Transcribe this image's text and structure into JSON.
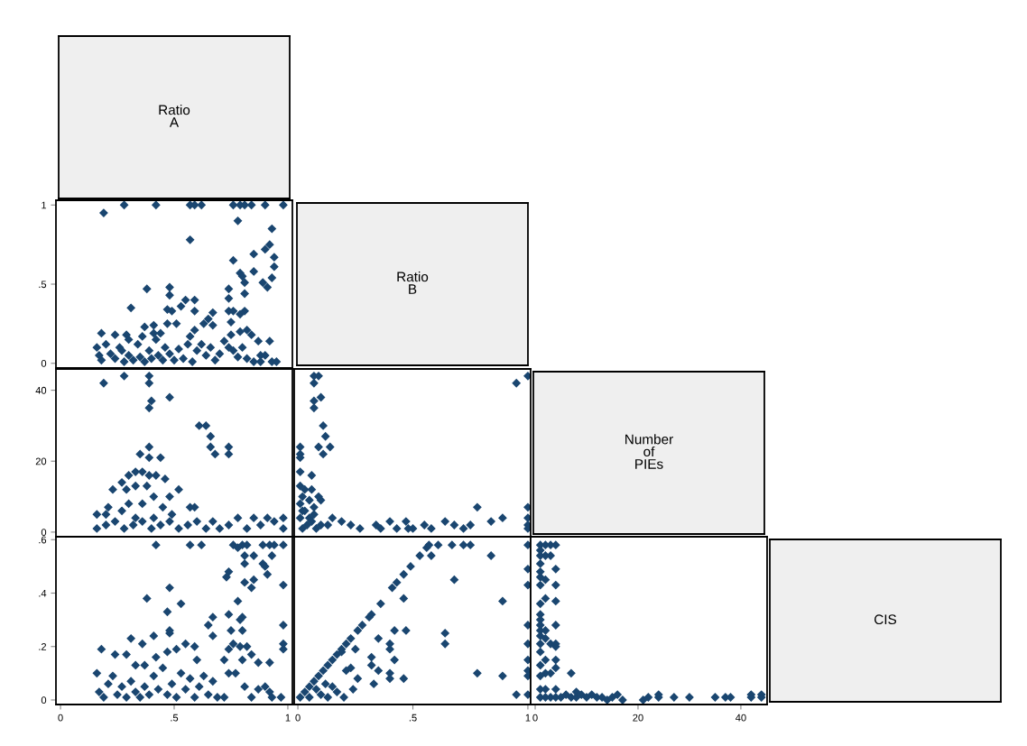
{
  "chart_data": [
    {
      "type": "other",
      "title": "Ratio\nA"
    },
    {
      "type": "scatter",
      "marker": "diamond",
      "tick_labels": "y",
      "xlim": [
        -0.02,
        1.02
      ],
      "ylim": [
        -0.03,
        1.03
      ],
      "yticks": [
        0,
        {
          "value": 0.5,
          "label": ".5"
        },
        1
      ],
      "series": [
        {
          "color": "#1a4670",
          "x": [
            0.19,
            0.28,
            0.42,
            0.57,
            0.59,
            0.62,
            0.76,
            0.79,
            0.81,
            0.84,
            0.9,
            0.98,
            0.78,
            0.57,
            0.93,
            0.92,
            0.9,
            0.85,
            0.94,
            0.94,
            0.76,
            0.79,
            0.8,
            0.81,
            0.85,
            0.93,
            0.89,
            0.91,
            0.81,
            0.74,
            0.74,
            0.38,
            0.48,
            0.48,
            0.31,
            0.47,
            0.49,
            0.53,
            0.55,
            0.59,
            0.59,
            0.74,
            0.76,
            0.81,
            0.79,
            0.67,
            0.65,
            0.63,
            0.75,
            0.51,
            0.37,
            0.41,
            0.47,
            0.59,
            0.67,
            0.82,
            0.84,
            0.79,
            0.75,
            0.18,
            0.24,
            0.29,
            0.57,
            0.87,
            0.92,
            0.16,
            0.17,
            0.18,
            0.2,
            0.22,
            0.24,
            0.26,
            0.28,
            0.3,
            0.32,
            0.34,
            0.35,
            0.37,
            0.39,
            0.4,
            0.42,
            0.43,
            0.45,
            0.46,
            0.48,
            0.5,
            0.52,
            0.54,
            0.56,
            0.58,
            0.6,
            0.62,
            0.64,
            0.66,
            0.68,
            0.7,
            0.72,
            0.74,
            0.76,
            0.78,
            0.8,
            0.82,
            0.85,
            0.88,
            0.9,
            0.93,
            0.95,
            0.88,
            0.3,
            0.27,
            0.44,
            0.41,
            0.36
          ],
          "values": [
            0.95,
            1,
            1,
            1,
            1,
            1,
            1,
            1,
            1,
            1,
            1,
            1,
            0.9,
            0.78,
            0.85,
            0.75,
            0.72,
            0.69,
            0.67,
            0.61,
            0.65,
            0.57,
            0.55,
            0.51,
            0.58,
            0.54,
            0.51,
            0.48,
            0.44,
            0.47,
            0.41,
            0.47,
            0.48,
            0.43,
            0.35,
            0.34,
            0.33,
            0.36,
            0.4,
            0.4,
            0.33,
            0.33,
            0.33,
            0.33,
            0.31,
            0.32,
            0.28,
            0.25,
            0.26,
            0.25,
            0.23,
            0.24,
            0.25,
            0.21,
            0.24,
            0.21,
            0.18,
            0.2,
            0.18,
            0.19,
            0.18,
            0.18,
            0.17,
            0.14,
            0.14,
            0.1,
            0.05,
            0.02,
            0.12,
            0.06,
            0.03,
            0.1,
            0.01,
            0.05,
            0.02,
            0.12,
            0.04,
            0.01,
            0.08,
            0.03,
            0.15,
            0.05,
            0.02,
            0.1,
            0.06,
            0.02,
            0.09,
            0.03,
            0.12,
            0.01,
            0.08,
            0.12,
            0.05,
            0.1,
            0.02,
            0.06,
            0.14,
            0.1,
            0.08,
            0.04,
            0.1,
            0.03,
            0.01,
            0.05,
            0.05,
            0.01,
            0.01,
            0.01,
            0.15,
            0.08,
            0.19,
            0.19,
            0.17
          ]
        }
      ]
    },
    {
      "type": "other",
      "title": "Ratio\nB"
    },
    {
      "type": "scatter",
      "marker": "diamond",
      "tick_labels": "y",
      "xlim": [
        -0.02,
        1.02
      ],
      "ylim": [
        -1.3,
        46
      ],
      "yticks": [
        0,
        20,
        40
      ],
      "series": [
        {
          "color": "#1a4670",
          "x": [
            0.19,
            0.28,
            0.39,
            0.39,
            0.4,
            0.39,
            0.48,
            0.61,
            0.64,
            0.66,
            0.66,
            0.68,
            0.74,
            0.74,
            0.35,
            0.39,
            0.39,
            0.44,
            0.33,
            0.36,
            0.39,
            0.3,
            0.27,
            0.23,
            0.29,
            0.33,
            0.38,
            0.42,
            0.46,
            0.52,
            0.41,
            0.48,
            0.3,
            0.36,
            0.21,
            0.45,
            0.57,
            0.59,
            0.49,
            0.27,
            0.16,
            0.2,
            0.41,
            0.33,
            0.16,
            0.2,
            0.24,
            0.28,
            0.32,
            0.36,
            0.4,
            0.44,
            0.48,
            0.52,
            0.56,
            0.6,
            0.64,
            0.67,
            0.7,
            0.74,
            0.78,
            0.82,
            0.85,
            0.88,
            0.91,
            0.94,
            0.98,
            0.98
          ],
          "values": [
            42,
            44,
            44,
            42,
            37,
            35,
            38,
            30,
            30,
            27,
            24,
            22,
            24,
            22,
            22,
            24,
            21,
            21,
            17,
            17,
            16,
            16,
            14,
            12,
            12,
            13,
            13,
            16,
            15,
            12,
            10,
            10,
            8,
            8,
            7,
            7,
            7,
            7,
            5,
            6,
            5,
            5,
            4,
            4,
            1,
            2,
            3,
            1,
            2,
            3,
            1,
            2,
            3,
            1,
            2,
            3,
            1,
            3,
            1,
            2,
            4,
            1,
            4,
            2,
            4,
            3,
            4,
            1
          ]
        }
      ]
    },
    {
      "type": "scatter",
      "marker": "diamond",
      "tick_labels": false,
      "xlim": [
        -0.016,
        1.012
      ],
      "ylim": [
        -1.3,
        46
      ],
      "series": [
        {
          "color": "#1a4670",
          "x": [
            0.07,
            0.09,
            0.07,
            0.07,
            0.07,
            0.1,
            0.11,
            0.12,
            0.09,
            0.14,
            0.11,
            0.01,
            0.01,
            0.01,
            0.95,
            1.0,
            0.01,
            0.06,
            0.01,
            0.03,
            0.06,
            0.09,
            0.1,
            0.01,
            0.02,
            0.01,
            0.05,
            0.07,
            0.78,
            1.0,
            1.0,
            1.0,
            1.0,
            0.89,
            0.84,
            0.75,
            0.72,
            0.68,
            0.64,
            0.58,
            0.55,
            0.5,
            0.48,
            0.47,
            0.43,
            0.4,
            0.36,
            0.34,
            0.27,
            0.23,
            0.19,
            0.15,
            0.13,
            0.02,
            0.04,
            0.06,
            0.08,
            0.1,
            0.03,
            0.05,
            0.02,
            0.07
          ],
          "values": [
            44,
            44,
            42,
            37,
            35,
            38,
            30,
            27,
            24,
            24,
            22,
            24,
            22,
            21,
            42,
            44,
            17,
            16,
            13,
            12,
            12,
            10,
            9,
            8,
            6,
            4,
            4,
            5,
            7,
            7,
            4,
            2,
            1,
            4,
            3,
            2,
            1,
            2,
            3,
            1,
            2,
            1,
            1,
            3,
            1,
            3,
            1,
            2,
            1,
            2,
            3,
            4,
            2,
            1,
            2,
            3,
            1,
            2,
            6,
            9,
            10,
            7
          ]
        }
      ]
    },
    {
      "type": "other",
      "title": "Number\nof\nPIEs"
    },
    {
      "type": "scatter",
      "marker": "diamond",
      "xlim": [
        -0.02,
        1.02
      ],
      "ylim": [
        -0.017,
        0.611
      ],
      "xticks": [
        0,
        {
          "value": 0.5,
          "label": ".5"
        },
        1
      ],
      "yticks": [
        0,
        {
          "value": 0.2,
          "label": ".2"
        },
        {
          "value": 0.4,
          "label": ".4"
        },
        {
          "value": 0.6,
          "label": ".6"
        }
      ],
      "series": [
        {
          "color": "#1a4670",
          "x": [
            0.42,
            0.57,
            0.62,
            0.76,
            0.78,
            0.8,
            0.82,
            0.89,
            0.92,
            0.94,
            0.98,
            0.81,
            0.85,
            0.93,
            0.81,
            0.89,
            0.9,
            0.91,
            0.74,
            0.73,
            0.81,
            0.85,
            0.84,
            0.98,
            0.48,
            0.38,
            0.53,
            0.78,
            0.47,
            0.67,
            0.74,
            0.8,
            0.79,
            0.65,
            0.98,
            0.75,
            0.8,
            0.48,
            0.48,
            0.67,
            0.41,
            0.31,
            0.36,
            0.55,
            0.59,
            0.51,
            0.98,
            0.98,
            0.18,
            0.76,
            0.82,
            0.79,
            0.74,
            0.47,
            0.29,
            0.24,
            0.42,
            0.8,
            0.84,
            0.87,
            0.92,
            0.72,
            0.6,
            0.33,
            0.37,
            0.81,
            0.84,
            0.87,
            0.93,
            0.97,
            0.16,
            0.17,
            0.19,
            0.21,
            0.23,
            0.25,
            0.27,
            0.29,
            0.31,
            0.33,
            0.35,
            0.37,
            0.39,
            0.41,
            0.43,
            0.45,
            0.47,
            0.49,
            0.51,
            0.53,
            0.55,
            0.57,
            0.59,
            0.61,
            0.63,
            0.65,
            0.67,
            0.69,
            0.72,
            0.74,
            0.77,
            0.9,
            0.92
          ],
          "values": [
            0.58,
            0.58,
            0.58,
            0.58,
            0.57,
            0.58,
            0.58,
            0.58,
            0.58,
            0.58,
            0.58,
            0.54,
            0.54,
            0.54,
            0.51,
            0.51,
            0.5,
            0.47,
            0.48,
            0.46,
            0.44,
            0.45,
            0.42,
            0.43,
            0.42,
            0.38,
            0.36,
            0.37,
            0.33,
            0.31,
            0.32,
            0.31,
            0.3,
            0.28,
            0.28,
            0.26,
            0.26,
            0.26,
            0.25,
            0.24,
            0.24,
            0.23,
            0.21,
            0.21,
            0.2,
            0.19,
            0.21,
            0.19,
            0.19,
            0.21,
            0.2,
            0.2,
            0.19,
            0.18,
            0.17,
            0.17,
            0.16,
            0.15,
            0.17,
            0.14,
            0.14,
            0.15,
            0.15,
            0.13,
            0.13,
            0.05,
            0.01,
            0.04,
            0.01,
            0.01,
            0.1,
            0.03,
            0.01,
            0.06,
            0.09,
            0.02,
            0.05,
            0.01,
            0.07,
            0.03,
            0.01,
            0.05,
            0.02,
            0.09,
            0.04,
            0.12,
            0.02,
            0.06,
            0.01,
            0.1,
            0.04,
            0.08,
            0.01,
            0.05,
            0.09,
            0.02,
            0.07,
            0.01,
            0.01,
            0.1,
            0.1,
            0.05,
            0.03
          ]
        }
      ]
    },
    {
      "type": "scatter",
      "marker": "diamond",
      "tick_labels": "x",
      "xlim": [
        -0.016,
        1.012
      ],
      "ylim": [
        -0.017,
        0.611
      ],
      "xticks": [
        0,
        {
          "value": 0.5,
          "label": ".5"
        },
        1
      ],
      "series": [
        {
          "color": "#1a4670",
          "x": [
            0.01,
            0.03,
            0.05,
            0.07,
            0.09,
            0.11,
            0.13,
            0.15,
            0.17,
            0.19,
            0.21,
            0.23,
            0.26,
            0.28,
            0.31,
            0.32,
            0.36,
            0.41,
            0.43,
            0.46,
            0.49,
            0.53,
            0.56,
            0.57,
            0.61,
            0.67,
            0.72,
            0.75,
            1.0,
            0.58,
            0.84,
            0.68,
            0.89,
            0.46,
            1.0,
            1.0,
            1.0,
            1.0,
            1.0,
            1.0,
            1.0,
            1.0,
            0.95,
            0.78,
            0.89,
            0.64,
            0.64,
            0.47,
            0.42,
            0.35,
            0.4,
            0.4,
            0.42,
            0.32,
            0.32,
            0.35,
            0.33,
            0.4,
            0.4,
            0.46,
            0.25,
            0.19,
            0.23,
            0.26,
            0.21,
            0.24,
            0.2,
            0.05,
            0.1,
            0.13,
            0.08,
            0.12,
            0.15,
            0.17
          ],
          "values": [
            0.01,
            0.03,
            0.05,
            0.07,
            0.09,
            0.11,
            0.13,
            0.15,
            0.17,
            0.19,
            0.21,
            0.23,
            0.26,
            0.28,
            0.31,
            0.32,
            0.36,
            0.42,
            0.44,
            0.47,
            0.5,
            0.54,
            0.57,
            0.58,
            0.58,
            0.58,
            0.58,
            0.58,
            0.58,
            0.54,
            0.54,
            0.45,
            0.37,
            0.38,
            0.49,
            0.43,
            0.28,
            0.21,
            0.15,
            0.11,
            0.09,
            0.02,
            0.02,
            0.1,
            0.09,
            0.25,
            0.21,
            0.26,
            0.26,
            0.23,
            0.21,
            0.19,
            0.15,
            0.16,
            0.13,
            0.11,
            0.06,
            0.1,
            0.08,
            0.08,
            0.19,
            0.18,
            0.12,
            0.08,
            0.11,
            0.04,
            0.01,
            0.01,
            0.02,
            0.01,
            0.04,
            0.06,
            0.05,
            0.03
          ]
        }
      ]
    },
    {
      "type": "scatter",
      "marker": "diamond",
      "tick_labels": "x",
      "xlim": [
        -0.88,
        45.1
      ],
      "ylim": [
        -0.017,
        0.611
      ],
      "xticks": [
        0,
        20,
        40
      ],
      "series": [
        {
          "color": "#1a4670",
          "x": [
            1,
            1,
            1,
            1,
            1,
            1,
            1,
            1,
            1,
            1,
            1,
            1,
            1,
            1,
            1,
            1,
            1,
            1,
            1,
            2,
            2,
            2,
            2,
            2,
            2,
            2,
            2,
            2,
            2,
            3,
            3,
            3,
            3,
            3,
            4,
            4,
            4,
            4,
            4,
            4,
            4,
            4,
            4,
            4,
            4,
            7,
            7,
            5,
            6,
            8,
            8,
            9,
            10,
            11,
            12,
            13,
            14,
            15,
            16,
            17,
            21,
            22,
            24,
            24,
            27,
            30,
            35,
            37,
            38,
            42,
            42,
            44,
            44
          ],
          "values": [
            0.58,
            0.56,
            0.54,
            0.51,
            0.48,
            0.46,
            0.43,
            0.36,
            0.32,
            0.3,
            0.28,
            0.26,
            0.24,
            0.21,
            0.18,
            0.13,
            0.09,
            0.04,
            0.01,
            0.58,
            0.54,
            0.45,
            0.38,
            0.26,
            0.23,
            0.15,
            0.1,
            0.04,
            0.01,
            0.58,
            0.54,
            0.21,
            0.1,
            0.01,
            0.58,
            0.49,
            0.43,
            0.37,
            0.28,
            0.21,
            0.2,
            0.15,
            0.12,
            0.04,
            0.01,
            0.1,
            0.01,
            0.01,
            0.02,
            0.01,
            0.03,
            0.02,
            0.01,
            0.02,
            0.01,
            0.01,
            0.0,
            0.01,
            0.02,
            0.0,
            0.0,
            0.01,
            0.01,
            0.02,
            0.01,
            0.01,
            0.01,
            0.01,
            0.01,
            0.01,
            0.02,
            0.01,
            0.02
          ]
        }
      ]
    },
    {
      "type": "other",
      "title": "CIS"
    }
  ]
}
